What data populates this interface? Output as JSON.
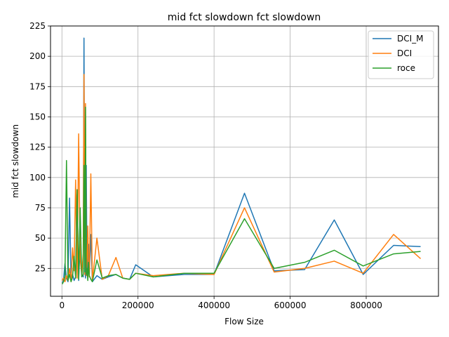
{
  "chart_data": {
    "type": "line",
    "title": "mid fct slowdown fct slowdown",
    "xlabel": "Flow Size",
    "ylabel": "mid fct slowdown",
    "xlim": [
      -30000,
      990000
    ],
    "ylim": [
      2,
      225
    ],
    "xticks": [
      0,
      200000,
      400000,
      600000,
      800000
    ],
    "xtick_labels": [
      "0",
      "200000",
      "400000",
      "600000",
      "800000"
    ],
    "yticks": [
      25,
      50,
      75,
      100,
      125,
      150,
      175,
      200,
      225
    ],
    "ytick_labels": [
      "25",
      "50",
      "75",
      "100",
      "125",
      "150",
      "175",
      "200",
      "225"
    ],
    "grid": true,
    "legend_position": "top-right",
    "series": [
      {
        "name": "DCI_M",
        "color": "#1f77b4",
        "x": [
          1000,
          4000,
          8000,
          12000,
          16000,
          20000,
          24000,
          28000,
          32000,
          36000,
          40000,
          44000,
          48000,
          52000,
          56000,
          58000,
          60000,
          62000,
          64000,
          66000,
          68000,
          70000,
          72000,
          76000,
          80000,
          92000,
          106000,
          122000,
          142000,
          160000,
          178000,
          194000,
          240000,
          322000,
          400000,
          480000,
          558000,
          638000,
          716000,
          792000,
          872000,
          943000
        ],
        "y": [
          13,
          15,
          29,
          17,
          14,
          83,
          16,
          20,
          15,
          18,
          86,
          15,
          45,
          20,
          18,
          215,
          30,
          17,
          110,
          19,
          28,
          45,
          20,
          53,
          14,
          19,
          16,
          18,
          20,
          17,
          16,
          28,
          18,
          20,
          20,
          87,
          23,
          24,
          65,
          20,
          44,
          43
        ]
      },
      {
        "name": "DCI",
        "color": "#ff7f0e",
        "x": [
          1000,
          4000,
          8000,
          12000,
          16000,
          20000,
          24000,
          28000,
          32000,
          36000,
          40000,
          44000,
          48000,
          52000,
          56000,
          58000,
          60000,
          62000,
          64000,
          66000,
          68000,
          70000,
          72000,
          76000,
          80000,
          92000,
          106000,
          122000,
          142000,
          160000,
          178000,
          194000,
          240000,
          322000,
          400000,
          480000,
          558000,
          638000,
          716000,
          792000,
          872000,
          943000
        ],
        "y": [
          15,
          17,
          14,
          19,
          15,
          25,
          14,
          42,
          23,
          98,
          17,
          136,
          33,
          20,
          37,
          185,
          20,
          161,
          19,
          30,
          60,
          25,
          18,
          103,
          15,
          50,
          16,
          19,
          34,
          17,
          16,
          21,
          19,
          21,
          20,
          75,
          22,
          25,
          31,
          21,
          53,
          33
        ]
      },
      {
        "name": "roce",
        "color": "#2ca02c",
        "x": [
          1000,
          4000,
          8000,
          12000,
          16000,
          20000,
          24000,
          28000,
          32000,
          36000,
          40000,
          44000,
          48000,
          52000,
          56000,
          58000,
          60000,
          62000,
          64000,
          66000,
          68000,
          70000,
          72000,
          76000,
          80000,
          92000,
          106000,
          122000,
          142000,
          160000,
          178000,
          194000,
          240000,
          322000,
          400000,
          480000,
          558000,
          638000,
          716000,
          792000,
          872000,
          943000
        ],
        "y": [
          12,
          14,
          18,
          114,
          15,
          20,
          14,
          18,
          35,
          17,
          90,
          16,
          75,
          18,
          20,
          110,
          22,
          158,
          20,
          25,
          15,
          30,
          19,
          16,
          14,
          32,
          17,
          19,
          20,
          17,
          16,
          21,
          18,
          21,
          21,
          66,
          25,
          30,
          40,
          27,
          37,
          39
        ]
      }
    ]
  }
}
